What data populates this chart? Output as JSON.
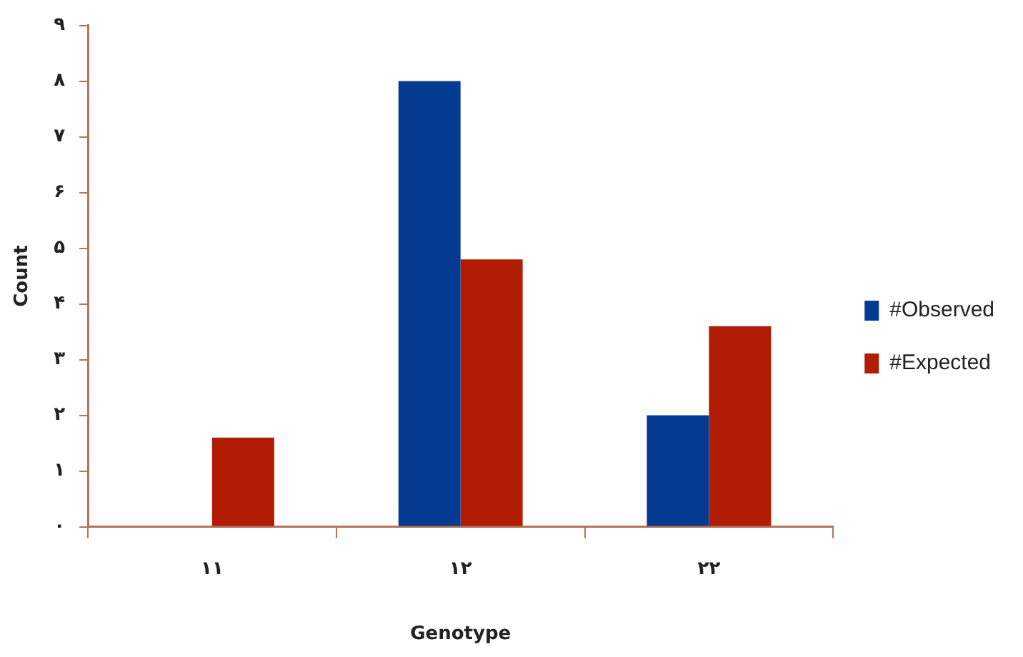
{
  "chart_data": {
    "type": "bar",
    "xlabel": "Genotype",
    "ylabel": "Count",
    "categories": [
      "۱۱",
      "۱۲",
      "۲۲"
    ],
    "series": [
      {
        "name": "#Observed",
        "color": "#043a8f",
        "values": [
          0,
          8,
          2
        ]
      },
      {
        "name": "#Expected",
        "color": "#b01c04",
        "values": [
          1.6,
          4.8,
          3.6
        ]
      }
    ],
    "ylim": [
      0,
      9
    ],
    "yticks": [
      {
        "value": 0,
        "label": "۰"
      },
      {
        "value": 1,
        "label": "۱"
      },
      {
        "value": 2,
        "label": "۲"
      },
      {
        "value": 3,
        "label": "۳"
      },
      {
        "value": 4,
        "label": "۴"
      },
      {
        "value": 5,
        "label": "۵"
      },
      {
        "value": 6,
        "label": "۶"
      },
      {
        "value": 7,
        "label": "۷"
      },
      {
        "value": 8,
        "label": "۸"
      },
      {
        "value": 9,
        "label": "۹"
      }
    ],
    "grid": false,
    "legend": "right"
  }
}
